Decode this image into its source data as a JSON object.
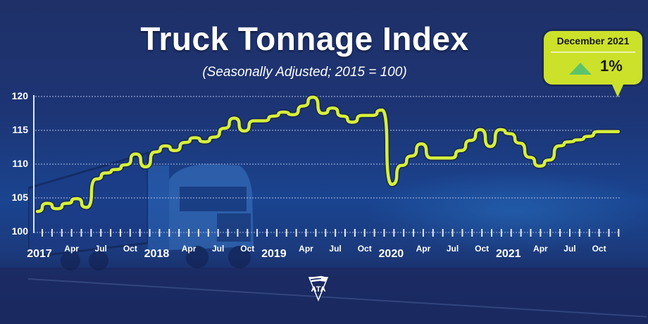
{
  "header": {
    "title": "Truck Tonnage Index",
    "subtitle": "(Seasonally Adjusted; 2015 = 100)"
  },
  "callout": {
    "date": "December 2021",
    "direction_icon": "up-triangle-icon",
    "change": "1%",
    "colors": {
      "bubble": "#cce12a",
      "arrow": "#5dc46a"
    }
  },
  "colors": {
    "line": "#d6f03a",
    "line_outline": "#1a1f3a",
    "gridline": "#a9b6e0",
    "background": "#1d3575"
  },
  "logo": {
    "text": "ATA"
  },
  "chart_data": {
    "type": "line",
    "title": "Truck Tonnage Index",
    "subtitle": "(Seasonally Adjusted; 2015 = 100)",
    "xlabel": "",
    "ylabel": "",
    "ylim": [
      100,
      120
    ],
    "yticks": [
      100,
      105,
      110,
      115,
      120
    ],
    "grid": true,
    "legend": "none",
    "x_month_labels": [
      "Apr",
      "Jul",
      "Oct"
    ],
    "x_year_labels": [
      "2017",
      "2018",
      "2019",
      "2020",
      "2021"
    ],
    "x": [
      "2017-01",
      "2017-02",
      "2017-03",
      "2017-04",
      "2017-05",
      "2017-06",
      "2017-07",
      "2017-08",
      "2017-09",
      "2017-10",
      "2017-11",
      "2017-12",
      "2018-01",
      "2018-02",
      "2018-03",
      "2018-04",
      "2018-05",
      "2018-06",
      "2018-07",
      "2018-08",
      "2018-09",
      "2018-10",
      "2018-11",
      "2018-12",
      "2019-01",
      "2019-02",
      "2019-03",
      "2019-04",
      "2019-05",
      "2019-06",
      "2019-07",
      "2019-08",
      "2019-09",
      "2019-10",
      "2019-11",
      "2019-12",
      "2020-01",
      "2020-02",
      "2020-03",
      "2020-04",
      "2020-05",
      "2020-06",
      "2020-07",
      "2020-08",
      "2020-09",
      "2020-10",
      "2020-11",
      "2020-12",
      "2021-01",
      "2021-02",
      "2021-03",
      "2021-04",
      "2021-05",
      "2021-06",
      "2021-07",
      "2021-08",
      "2021-09",
      "2021-10",
      "2021-11",
      "2021-12"
    ],
    "series": [
      {
        "name": "Truck Tonnage Index",
        "values": [
          103.0,
          104.2,
          103.4,
          104.2,
          104.9,
          103.6,
          107.8,
          108.7,
          109.2,
          109.9,
          111.5,
          109.6,
          111.8,
          112.7,
          112.0,
          113.2,
          113.9,
          113.3,
          114.0,
          115.3,
          116.8,
          114.9,
          116.4,
          116.4,
          117.1,
          117.7,
          117.3,
          118.6,
          119.9,
          117.5,
          118.3,
          117.1,
          116.2,
          117.2,
          117.2,
          118.0,
          107.0,
          109.8,
          111.2,
          113.0,
          110.9,
          110.9,
          110.9,
          112.0,
          113.5,
          115.1,
          112.6,
          115.1,
          114.5,
          113.1,
          111.0,
          109.7,
          110.6,
          112.7,
          113.3,
          113.6,
          114.1,
          114.8,
          114.8,
          114.8
        ]
      }
    ]
  }
}
